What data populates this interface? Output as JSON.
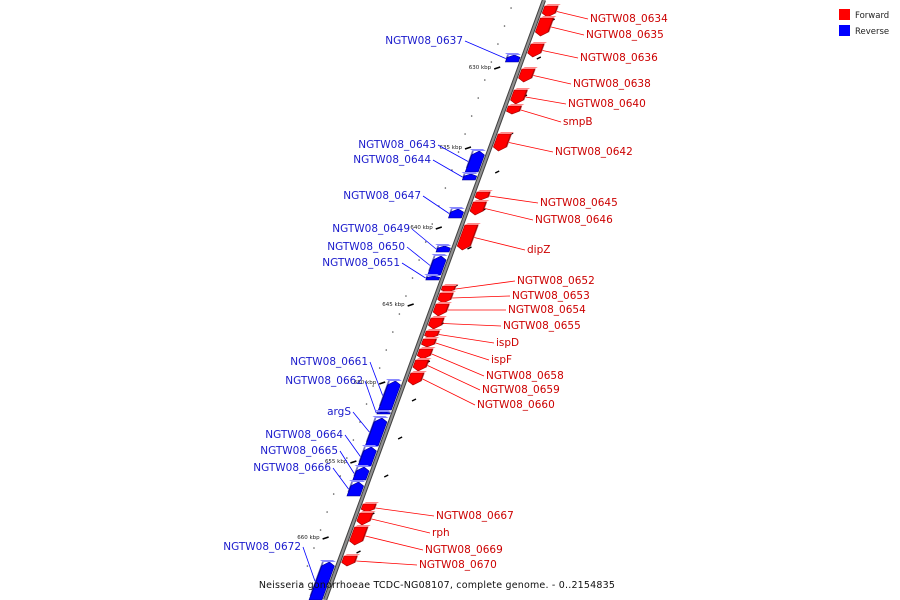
{
  "colors": {
    "forward": "#ff0000",
    "forward_dark": "#9e0000",
    "forward_light": "#ff8a8a",
    "reverse": "#0000ff",
    "reverse_dark": "#00008c",
    "reverse_light": "#8a8aff",
    "backbone": "#909090",
    "backbone_edge": "#404040"
  },
  "legend": [
    {
      "label": "Forward",
      "strand": "forward"
    },
    {
      "label": "Reverse",
      "strand": "reverse"
    }
  ],
  "caption": "Neisseria gonorrhoeae TCDC-NG08107, complete genome. - 0..2154835",
  "ticks": [
    "630 kbp",
    "635 kbp",
    "640 kbp",
    "645 kbp",
    "650 kbp",
    "655 kbp",
    "660 kbp"
  ],
  "genes_forward": [
    {
      "label": "NGTW08_0634"
    },
    {
      "label": "NGTW08_0635"
    },
    {
      "label": "NGTW08_0636"
    },
    {
      "label": "NGTW08_0638"
    },
    {
      "label": "NGTW08_0640"
    },
    {
      "label": "smpB"
    },
    {
      "label": "NGTW08_0642"
    },
    {
      "label": "NGTW08_0645"
    },
    {
      "label": "NGTW08_0646"
    },
    {
      "label": "dipZ"
    },
    {
      "label": "NGTW08_0652"
    },
    {
      "label": "NGTW08_0653"
    },
    {
      "label": "NGTW08_0654"
    },
    {
      "label": "NGTW08_0655"
    },
    {
      "label": "ispD"
    },
    {
      "label": "ispF"
    },
    {
      "label": "NGTW08_0658"
    },
    {
      "label": "NGTW08_0659"
    },
    {
      "label": "NGTW08_0660"
    },
    {
      "label": "NGTW08_0667"
    },
    {
      "label": "rph"
    },
    {
      "label": "NGTW08_0669"
    },
    {
      "label": "NGTW08_0670"
    }
  ],
  "genes_reverse": [
    {
      "label": "NGTW08_0637"
    },
    {
      "label": "NGTW08_0643"
    },
    {
      "label": "NGTW08_0644"
    },
    {
      "label": "NGTW08_0647"
    },
    {
      "label": "NGTW08_0649"
    },
    {
      "label": "NGTW08_0650"
    },
    {
      "label": "NGTW08_0651"
    },
    {
      "label": "NGTW08_0661"
    },
    {
      "label": "NGTW08_0662"
    },
    {
      "label": "argS"
    },
    {
      "label": "NGTW08_0664"
    },
    {
      "label": "NGTW08_0665"
    },
    {
      "label": "NGTW08_0666"
    },
    {
      "label": "NGTW08_0672"
    }
  ]
}
